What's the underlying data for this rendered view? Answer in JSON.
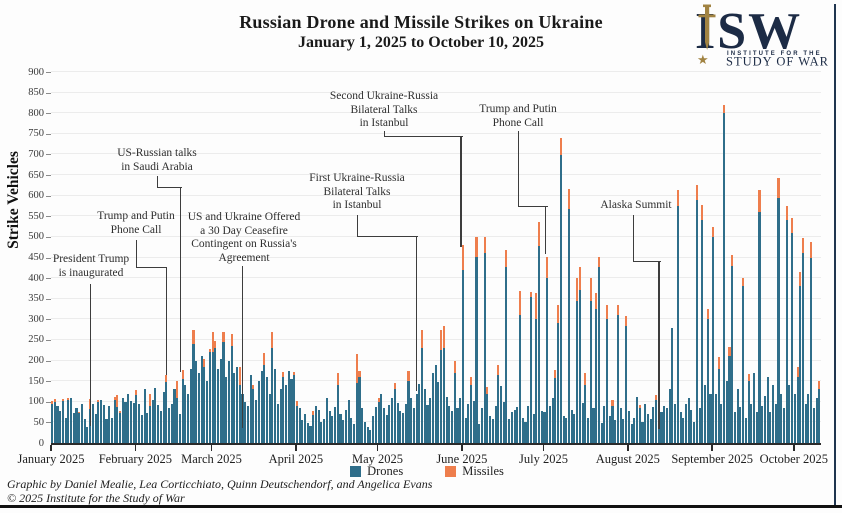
{
  "title": {
    "line1": "Russian Drone and Missile Strikes on Ukraine",
    "line2": "January 1, 2025 to October 10, 2025"
  },
  "logo": {
    "acronym": "ISW",
    "sub_line1": "INSTITUTE FOR THE",
    "sub_line2": "STUDY OF WAR",
    "navy": "#1c2b45",
    "gold": "#a18342"
  },
  "y_axis": {
    "label": "Strike Vehicles",
    "min": 0,
    "max": 900,
    "step": 50
  },
  "x_axis": {
    "months": [
      {
        "label": "January 2025",
        "day_offset": 0
      },
      {
        "label": "February 2025",
        "day_offset": 31
      },
      {
        "label": "March 2025",
        "day_offset": 59
      },
      {
        "label": "April 2025",
        "day_offset": 90
      },
      {
        "label": "May 2025",
        "day_offset": 120
      },
      {
        "label": "June 2025",
        "day_offset": 151
      },
      {
        "label": "July 2025",
        "day_offset": 181
      },
      {
        "label": "August 2025",
        "day_offset": 212
      },
      {
        "label": "September 2025",
        "day_offset": 243
      },
      {
        "label": "October 2025",
        "day_offset": 273
      }
    ]
  },
  "legend": [
    {
      "label": "Drones",
      "color": "#2f6e8a"
    },
    {
      "label": "Missiles",
      "color": "#ee7e4d"
    }
  ],
  "annotations": [
    {
      "label": "President Trump\nis inaugurated"
    },
    {
      "label": "Trump and Putin\nPhone Call"
    },
    {
      "label": "US-Russian talks\nin Saudi Arabia"
    },
    {
      "label": "US and Ukraine Offered\na 30 Day Ceasefire\nContingent on Russia's\nAgreement"
    },
    {
      "label": "First Ukraine-Russia\nBilateral Talks\nin Istanbul"
    },
    {
      "label": "Second Ukraine-Russia\nBilateral Talks\nin Istanbul"
    },
    {
      "label": "Trump and Putin\nPhone Call"
    },
    {
      "label": "Alaska Summit"
    }
  ],
  "footer": {
    "line1": "Graphic by Daniel Mealie, Lea Corticchiato, Quinn Deutschendorf, and Angelica Evans",
    "line2": "© 2025 Institute for the Study of War"
  },
  "chart_data": {
    "type": "bar",
    "stacked": true,
    "title": "Russian Drone and Missile Strikes on Ukraine, January 1, 2025 to October 10, 2025",
    "xlabel": "",
    "ylabel": "Strike Vehicles",
    "ylim": [
      0,
      900
    ],
    "grid": true,
    "legend_position": "bottom",
    "x_start": "January 1, 2025",
    "x_end": "October 10, 2025",
    "x_unit": "day",
    "n_days": 283,
    "series": [
      {
        "name": "Drones",
        "color": "#2f6e8a",
        "values": [
          95,
          100,
          90,
          78,
          103,
          61,
          104,
          110,
          74,
          85,
          72,
          94,
          58,
          40,
          82,
          95,
          70,
          100,
          104,
          92,
          58,
          90,
          60,
          104,
          88,
          72,
          108,
          100,
          118,
          102,
          96,
          116,
          95,
          67,
          130,
          72,
          90,
          105,
          133,
          92,
          78,
          124,
          148,
          85,
          95,
          132,
          110,
          70,
          155,
          140,
          118,
          180,
          240,
          200,
          170,
          210,
          185,
          150,
          220,
          220,
          230,
          180,
          205,
          245,
          160,
          200,
          235,
          170,
          185,
          140,
          120,
          100,
          90,
          165,
          130,
          105,
          150,
          175,
          190,
          160,
          120,
          230,
          180,
          95,
          130,
          160,
          140,
          175,
          155,
          165,
          90,
          85,
          57,
          70,
          48,
          42,
          68,
          90,
          80,
          52,
          58,
          110,
          78,
          65,
          88,
          140,
          70,
          55,
          80,
          105,
          60,
          45,
          145,
          160,
          85,
          50,
          38,
          32,
          65,
          88,
          100,
          118,
          84,
          68,
          92,
          108,
          130,
          98,
          78,
          72,
          95,
          150,
          108,
          84,
          118,
          142,
          230,
          132,
          92,
          108,
          170,
          190,
          148,
          225,
          230,
          112,
          90,
          78,
          170,
          85,
          108,
          420,
          60,
          95,
          140,
          103,
          452,
          45,
          85,
          460,
          120,
          65,
          58,
          90,
          165,
          138,
          100,
          428,
          58,
          75,
          80,
          88,
          310,
          60,
          52,
          90,
          355,
          71,
          300,
          477,
          78,
          75,
          400,
          90,
          108,
          157,
          290,
          698,
          65,
          60,
          567,
          80,
          70,
          344,
          370,
          96,
          140,
          60,
          344,
          85,
          324,
          426,
          48,
          90,
          300,
          65,
          90,
          55,
          310,
          85,
          58,
          285,
          78,
          45,
          60,
          112,
          85,
          50,
          95,
          70,
          58,
          88,
          105,
          62,
          75,
          90,
          85,
          130,
          280,
          95,
          574,
          75,
          60,
          95,
          110,
          80,
          52,
          590,
          86,
          540,
          140,
          300,
          120,
          500,
          120,
          180,
          95,
          800,
          150,
          210,
          430,
          75,
          130,
          88,
          380,
          60,
          150,
          95,
          170,
          75,
          560,
          90,
          115,
          160,
          75,
          140,
          95,
          595,
          120,
          85,
          540,
          140,
          510,
          120,
          160,
          380,
          460,
          95,
          120,
          450,
          85,
          110,
          130
        ]
      },
      {
        "name": "Missiles",
        "color": "#ee7e4d",
        "values": [
          8,
          6,
          0,
          0,
          3,
          0,
          6,
          0,
          0,
          0,
          4,
          0,
          0,
          0,
          25,
          0,
          0,
          5,
          0,
          0,
          0,
          0,
          0,
          8,
          28,
          6,
          0,
          0,
          0,
          0,
          0,
          12,
          0,
          0,
          0,
          0,
          28,
          0,
          0,
          0,
          0,
          0,
          18,
          0,
          0,
          0,
          40,
          0,
          22,
          0,
          0,
          0,
          35,
          0,
          0,
          0,
          18,
          0,
          8,
          50,
          18,
          0,
          0,
          25,
          0,
          0,
          30,
          0,
          0,
          45,
          0,
          0,
          0,
          0,
          10,
          0,
          0,
          0,
          28,
          0,
          0,
          40,
          0,
          0,
          0,
          12,
          0,
          0,
          0,
          8,
          12,
          0,
          0,
          0,
          0,
          0,
          10,
          0,
          0,
          0,
          0,
          0,
          0,
          0,
          0,
          30,
          0,
          0,
          0,
          0,
          0,
          0,
          70,
          15,
          0,
          0,
          0,
          0,
          0,
          0,
          8,
          0,
          0,
          0,
          0,
          0,
          15,
          0,
          0,
          0,
          0,
          25,
          0,
          0,
          0,
          0,
          45,
          0,
          0,
          0,
          0,
          0,
          0,
          50,
          55,
          0,
          0,
          0,
          28,
          0,
          0,
          60,
          0,
          0,
          20,
          0,
          47,
          0,
          0,
          39,
          15,
          0,
          0,
          0,
          25,
          0,
          0,
          40,
          0,
          0,
          0,
          0,
          58,
          0,
          0,
          0,
          12,
          0,
          63,
          60,
          0,
          0,
          52,
          0,
          0,
          20,
          45,
          43,
          0,
          0,
          50,
          0,
          0,
          56,
          56,
          0,
          30,
          0,
          56,
          0,
          40,
          26,
          0,
          0,
          35,
          0,
          15,
          0,
          25,
          0,
          0,
          24,
          0,
          0,
          0,
          0,
          8,
          0,
          0,
          0,
          0,
          0,
          12,
          0,
          0,
          0,
          0,
          0,
          0,
          0,
          40,
          0,
          0,
          0,
          0,
          0,
          0,
          35,
          0,
          37,
          0,
          26,
          0,
          25,
          0,
          28,
          0,
          20,
          0,
          24,
          26,
          0,
          0,
          0,
          20,
          0,
          18,
          0,
          0,
          0,
          53,
          0,
          0,
          0,
          0,
          0,
          0,
          48,
          0,
          0,
          35,
          0,
          36,
          0,
          25,
          35,
          37,
          0,
          0,
          38,
          0,
          0,
          20
        ]
      }
    ]
  }
}
